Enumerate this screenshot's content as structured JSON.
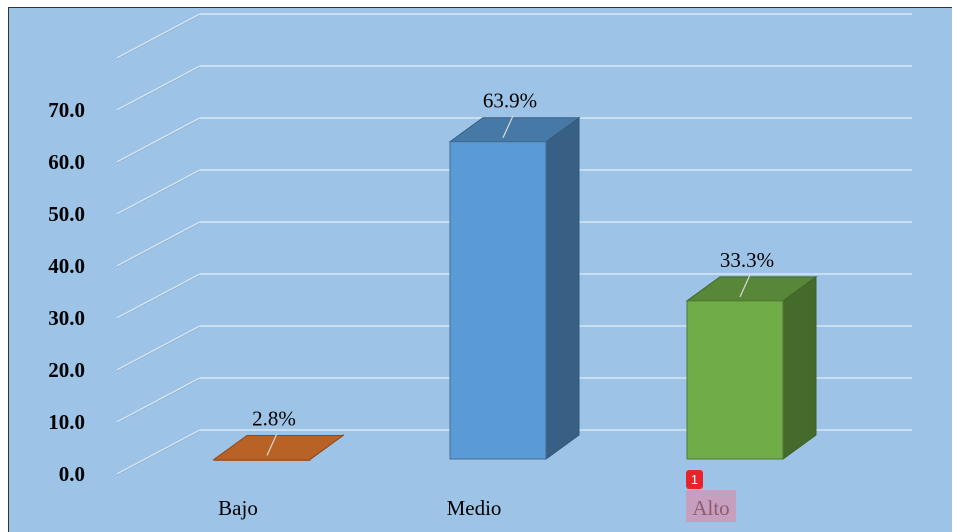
{
  "chart_data": {
    "type": "bar",
    "categories": [
      "Bajo",
      "Medio",
      "Alto"
    ],
    "values": [
      2.8,
      63.9,
      33.3
    ],
    "data_labels": [
      "2.8%",
      "63.9%",
      "33.3%"
    ],
    "ylim": [
      0,
      80
    ],
    "yticks": [
      "0.0",
      "10.0",
      "20.0",
      "30.0",
      "40.0",
      "50.0",
      "60.0",
      "70.0"
    ],
    "grid": true,
    "legend": "none",
    "colors": {
      "background": "#9dc3e6",
      "Bajo": "#ed7d31",
      "Medio": "#5b9bd5",
      "Alto": "#70ad47"
    }
  },
  "annotation": {
    "badge_text": "1"
  }
}
